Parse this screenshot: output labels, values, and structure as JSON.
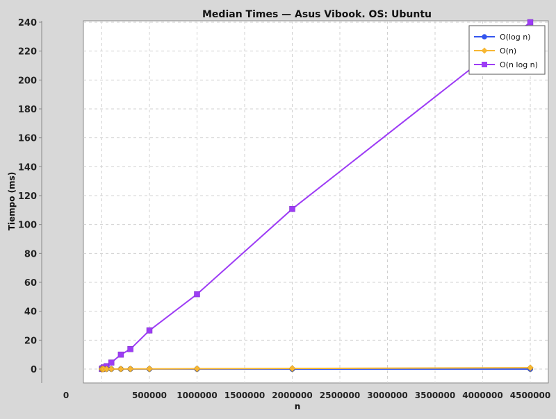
{
  "chart_data": {
    "type": "line",
    "title": "Median Times — Asus Vibook. OS: Ubuntu",
    "xlabel": "n",
    "ylabel": "Tiempo (ms)",
    "xlim": [
      0,
      4500000
    ],
    "ylim": [
      0,
      240
    ],
    "x_ticks": [
      0,
      500000,
      1000000,
      1500000,
      2000000,
      2500000,
      3000000,
      3500000,
      4000000,
      4500000
    ],
    "x_tick_labels": [
      "0",
      "500000",
      "1000000",
      "1500000",
      "2000000",
      "2500000",
      "3000000",
      "3500000",
      "4000000",
      "4500000"
    ],
    "y_ticks": [
      0,
      20,
      40,
      60,
      80,
      100,
      120,
      140,
      160,
      180,
      200,
      220,
      240
    ],
    "y_tick_labels": [
      "0",
      "20",
      "40",
      "60",
      "80",
      "100",
      "120",
      "140",
      "160",
      "180",
      "200",
      "220",
      "240"
    ],
    "grid": true,
    "legend_position": "top-right",
    "x": [
      1000,
      5000,
      10000,
      20000,
      50000,
      100000,
      200000,
      300000,
      500000,
      1000000,
      2000000,
      4500000
    ],
    "series": [
      {
        "name": "O(log n)",
        "color": "#3355ee",
        "marker": "circle",
        "values": [
          0.01,
          0.01,
          0.01,
          0.01,
          0.01,
          0.01,
          0.01,
          0.01,
          0.01,
          0.01,
          0.01,
          0.01
        ]
      },
      {
        "name": "O(n)",
        "color": "#f7b733",
        "marker": "diamond",
        "values": [
          0.0,
          0.0,
          0.01,
          0.01,
          0.02,
          0.04,
          0.07,
          0.1,
          0.16,
          0.25,
          0.45,
          0.9
        ]
      },
      {
        "name": "O(n log n)",
        "color": "#9d3cf5",
        "marker": "square",
        "values": [
          0.05,
          0.3,
          0.6,
          1.2,
          2.0,
          4.5,
          10.0,
          13.8,
          26.7,
          51.8,
          110.8,
          240.0
        ]
      }
    ]
  }
}
